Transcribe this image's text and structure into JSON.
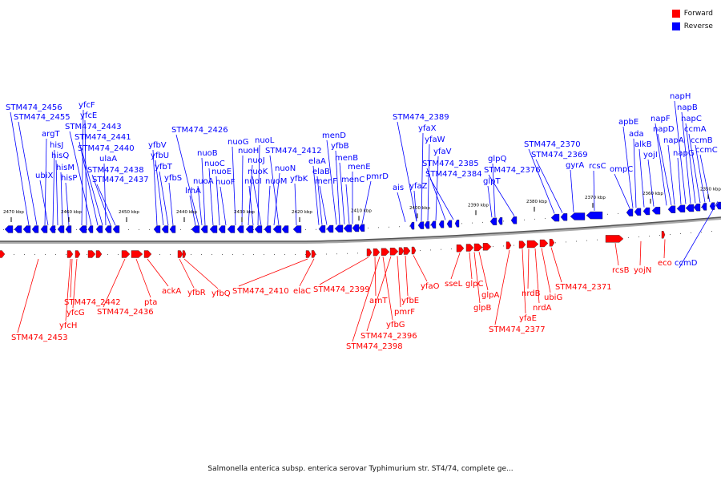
{
  "legend": {
    "forward_label": "Forward",
    "reverse_label": "Reverse",
    "forward_color": "#ff0000",
    "reverse_color": "#0000ff"
  },
  "caption": "Salmonella enterica subsp. enterica serovar Typhimurium str. ST4/74, complete ge...",
  "ticks": [
    "2470 kbp",
    "2460 kbp",
    "2450 kbp",
    "2440 kbp",
    "2430 kbp",
    "2420 kbp",
    "2410 kbp",
    "2400 kbp",
    "2390 kbp",
    "2380 kbp",
    "2370 kbp",
    "2360 kbp",
    "2350 kbp"
  ],
  "reverse_genes": [
    "STM474_2456",
    "STM474_2455",
    "argT",
    "hisJ",
    "hisQ",
    "ubiX",
    "hisM",
    "hisP",
    "yfcF",
    "yfcE",
    "STM474_2443",
    "STM474_2441",
    "STM474_2440",
    "ulaA",
    "STM474_2438",
    "STM474_2437",
    "yfbV",
    "yfbU",
    "yfbT",
    "yfbS",
    "STM474_2426",
    "lrhA",
    "nuoB",
    "nuoA",
    "nuoC",
    "nuoE",
    "nuoF",
    "nuoG",
    "nuoH",
    "nuoJ",
    "nuoI",
    "nuoL",
    "nuoK",
    "nuoM",
    "nuoN",
    "STM474_2412",
    "yfbK",
    "elaA",
    "elaB",
    "menF",
    "menD",
    "yfbB",
    "menB",
    "menC",
    "menE",
    "pmrD",
    "ais",
    "STM474_2389",
    "yfaX",
    "yfaW",
    "yfaZ",
    "yfaV",
    "STM474_2385",
    "STM474_2384",
    "glpQ",
    "glpT",
    "STM474_2376",
    "STM474_2370",
    "STM474_2369",
    "gyrA",
    "rcsC",
    "ompC",
    "apbE",
    "ada",
    "alkB",
    "yojI",
    "napF",
    "napD",
    "napA",
    "napH",
    "napB",
    "napC",
    "ccmA",
    "napG",
    "ccmB",
    "ccmC",
    "ccmD"
  ],
  "forward_genes": [
    "STM474_2453",
    "STM474_2442",
    "yfcG",
    "yfcH",
    "STM474_2436",
    "pta",
    "ackA",
    "yfbR",
    "yfbQ",
    "STM474_2410",
    "elaC",
    "STM474_2399",
    "arnT",
    "yfbG",
    "STM474_2396",
    "STM474_2398",
    "pmrF",
    "yfbE",
    "yfaO",
    "sseL",
    "glpC",
    "glpA",
    "glpB",
    "yfaE",
    "nrdB",
    "STM474_2377",
    "ubiG",
    "nrdA",
    "STM474_2371",
    "rcsB",
    "yojN",
    "eco"
  ]
}
